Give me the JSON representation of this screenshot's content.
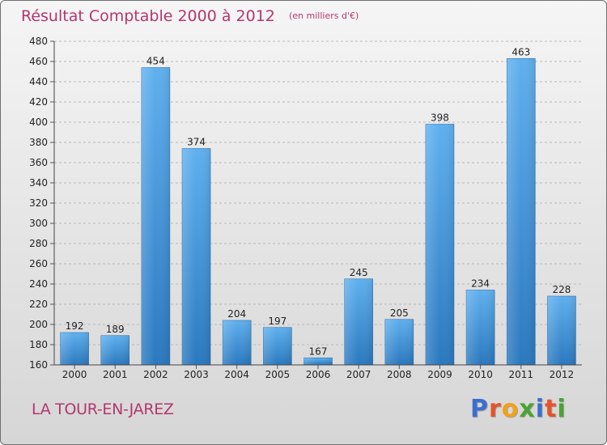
{
  "chart_data": {
    "type": "bar",
    "title": "Résultat Comptable 2000 à 2012",
    "subtitle": "(en milliers d'€)",
    "categories": [
      "2000",
      "2001",
      "2002",
      "2003",
      "2004",
      "2005",
      "2006",
      "2007",
      "2008",
      "2009",
      "2010",
      "2011",
      "2012"
    ],
    "values": [
      192,
      189,
      454,
      374,
      204,
      197,
      167,
      245,
      205,
      398,
      234,
      463,
      228
    ],
    "ylim": [
      160,
      480
    ],
    "yticks": [
      160,
      180,
      200,
      220,
      240,
      260,
      280,
      300,
      320,
      340,
      360,
      380,
      400,
      420,
      440,
      460,
      480
    ],
    "xlabel": "",
    "ylabel": "",
    "grid": "horizontal dashed",
    "bar_color": "#3a8fd8",
    "accent_color": "#b3376e"
  },
  "commune": "LA TOUR-EN-JAREZ",
  "logo": {
    "letters": [
      {
        "char": "P",
        "color": "#3b6fcf"
      },
      {
        "char": "r",
        "color": "#e5542a"
      },
      {
        "char": "o",
        "color": "#f0a21b"
      },
      {
        "char": "x",
        "color": "#4aa334"
      },
      {
        "char": "i",
        "color": "#3b6fcf"
      },
      {
        "char": "t",
        "color": "#e5542a"
      },
      {
        "char": "i",
        "color": "#4aa334"
      }
    ]
  }
}
